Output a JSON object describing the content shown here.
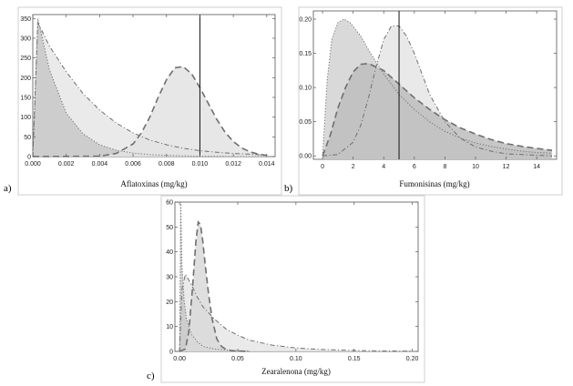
{
  "chart_data": [
    {
      "panel_label": "a)",
      "type": "area",
      "xlabel": "Aflatoxinas (mg/kg)",
      "ylabel": "",
      "xlim": [
        0,
        0.0145
      ],
      "ylim": [
        0,
        360
      ],
      "xticks": [
        0.0,
        0.002,
        0.004,
        0.006,
        0.008,
        0.01,
        0.012,
        0.014
      ],
      "xtick_labels": [
        "0.000",
        "0.002",
        "0.004",
        "0.006",
        "0.008",
        "0.010",
        "0.012",
        "0.014"
      ],
      "yticks": [
        0,
        50,
        100,
        150,
        200,
        250,
        300,
        350
      ],
      "ytick_labels": [
        "0",
        "50",
        "100",
        "150",
        "200",
        "250",
        "300",
        "350"
      ],
      "vline": 0.01,
      "series": [
        {
          "style": "dashdot",
          "fill": "#e6e6e6",
          "x": [
            0,
            0.0003,
            0.001,
            0.002,
            0.003,
            0.004,
            0.005,
            0.006,
            0.007,
            0.008,
            0.009,
            0.01,
            0.011,
            0.012,
            0.013,
            0.014
          ],
          "y": [
            0,
            340,
            280,
            215,
            160,
            118,
            85,
            60,
            42,
            30,
            21,
            15,
            11,
            8,
            6,
            4
          ]
        },
        {
          "style": "dotted",
          "fill": "#c8c8c8",
          "x": [
            0,
            0.0003,
            0.001,
            0.002,
            0.003,
            0.004,
            0.005,
            0.006,
            0.007,
            0.008,
            0.009,
            0.01,
            0.011,
            0.012,
            0.013,
            0.014
          ],
          "y": [
            0,
            350,
            220,
            110,
            58,
            30,
            16,
            9,
            5,
            3,
            2,
            1,
            1,
            0,
            0,
            0
          ]
        },
        {
          "style": "dashed",
          "fill": "#e3e3e3",
          "x": [
            0,
            0.004,
            0.005,
            0.006,
            0.0065,
            0.007,
            0.0075,
            0.008,
            0.0085,
            0.009,
            0.0095,
            0.01,
            0.0105,
            0.011,
            0.0115,
            0.012,
            0.0125,
            0.013,
            0.0135,
            0.014
          ],
          "y": [
            0,
            1,
            8,
            32,
            60,
            100,
            150,
            195,
            225,
            228,
            210,
            175,
            135,
            95,
            62,
            38,
            22,
            12,
            6,
            3
          ]
        }
      ]
    },
    {
      "panel_label": "b)",
      "type": "area",
      "xlabel": "Fumonisinas (mg/kg)",
      "ylabel": "",
      "xlim": [
        -0.6,
        15.3
      ],
      "ylim": [
        -0.005,
        0.212
      ],
      "xticks": [
        0,
        2,
        4,
        6,
        8,
        10,
        12,
        14
      ],
      "xtick_labels": [
        "0",
        "2",
        "4",
        "6",
        "8",
        "10",
        "12",
        "14"
      ],
      "yticks": [
        0.0,
        0.05,
        0.1,
        0.15,
        0.2
      ],
      "ytick_labels": [
        "0.00",
        "0.05",
        "0.10",
        "0.15",
        "0.20"
      ],
      "vline": 5,
      "series": [
        {
          "style": "dotted",
          "fill": "#d2d2d2",
          "x": [
            0,
            0.3,
            0.6,
            1.0,
            1.4,
            1.8,
            2.5,
            3,
            4,
            5,
            6,
            7,
            8,
            9,
            10,
            11,
            12,
            13,
            14,
            15
          ],
          "y": [
            0,
            0.11,
            0.17,
            0.195,
            0.2,
            0.195,
            0.175,
            0.155,
            0.12,
            0.09,
            0.068,
            0.05,
            0.036,
            0.026,
            0.019,
            0.014,
            0.01,
            0.007,
            0.005,
            0.004
          ]
        },
        {
          "style": "dashdot",
          "fill": "#e5e5e5",
          "x": [
            0,
            1,
            2,
            2.5,
            3,
            3.5,
            4,
            4.5,
            5,
            5.5,
            6,
            6.5,
            7,
            8,
            9,
            10,
            11,
            12,
            13,
            14,
            15
          ],
          "y": [
            0,
            0.002,
            0.02,
            0.045,
            0.085,
            0.13,
            0.17,
            0.19,
            0.19,
            0.175,
            0.15,
            0.12,
            0.09,
            0.05,
            0.026,
            0.013,
            0.007,
            0.003,
            0.002,
            0.001,
            0
          ]
        },
        {
          "style": "dashed",
          "fill": "#bdbdbd",
          "x": [
            0,
            0.5,
            1,
            1.5,
            2,
            2.5,
            3,
            4,
            5,
            6,
            7,
            8,
            9,
            10,
            11,
            12,
            13,
            14,
            15
          ],
          "y": [
            0,
            0.03,
            0.07,
            0.1,
            0.123,
            0.134,
            0.135,
            0.125,
            0.105,
            0.085,
            0.068,
            0.053,
            0.041,
            0.032,
            0.024,
            0.018,
            0.014,
            0.011,
            0.008
          ]
        }
      ]
    },
    {
      "panel_label": "c)",
      "type": "area",
      "xlabel": "Zearalenona (mg/kg)",
      "ylabel": "",
      "xlim": [
        -0.004,
        0.205
      ],
      "ylim": [
        0,
        60
      ],
      "xticks": [
        0.0,
        0.05,
        0.1,
        0.15,
        0.2
      ],
      "xtick_labels": [
        "0.00",
        "0.05",
        "0.10",
        "0.15",
        "0.20"
      ],
      "yticks": [
        0,
        10,
        20,
        30,
        40,
        50,
        60
      ],
      "ytick_labels": [
        "0",
        "10",
        "20",
        "30",
        "40",
        "50",
        "60"
      ],
      "series": [
        {
          "style": "dashdot",
          "fill": "#e6e6e6",
          "x": [
            0,
            0.002,
            0.005,
            0.01,
            0.015,
            0.02,
            0.03,
            0.04,
            0.05,
            0.06,
            0.08,
            0.1,
            0.12,
            0.14,
            0.16,
            0.18,
            0.2
          ],
          "y": [
            0,
            25,
            31,
            27,
            22,
            18,
            13,
            9,
            6.5,
            4.5,
            2.5,
            1.4,
            0.8,
            0.5,
            0.3,
            0.2,
            0.1
          ]
        },
        {
          "style": "dotted",
          "fill": "#c8c8c8",
          "x": [
            0,
            0.001,
            0.002,
            0.004,
            0.006,
            0.01,
            0.015,
            0.02,
            0.03,
            0.04,
            0.06
          ],
          "y": [
            0,
            60,
            35,
            20,
            13,
            7,
            4,
            2,
            1,
            0.5,
            0.2
          ]
        },
        {
          "style": "dashed",
          "fill": "#d9d9d9",
          "x": [
            0,
            0.005,
            0.008,
            0.011,
            0.014,
            0.016,
            0.018,
            0.02,
            0.022,
            0.025,
            0.028,
            0.032,
            0.036,
            0.04,
            0.045,
            0.05,
            0.06
          ],
          "y": [
            0,
            1,
            8,
            25,
            44,
            52,
            51,
            44,
            35,
            23,
            13,
            5,
            2,
            0.8,
            0.3,
            0.1,
            0
          ]
        }
      ]
    }
  ]
}
